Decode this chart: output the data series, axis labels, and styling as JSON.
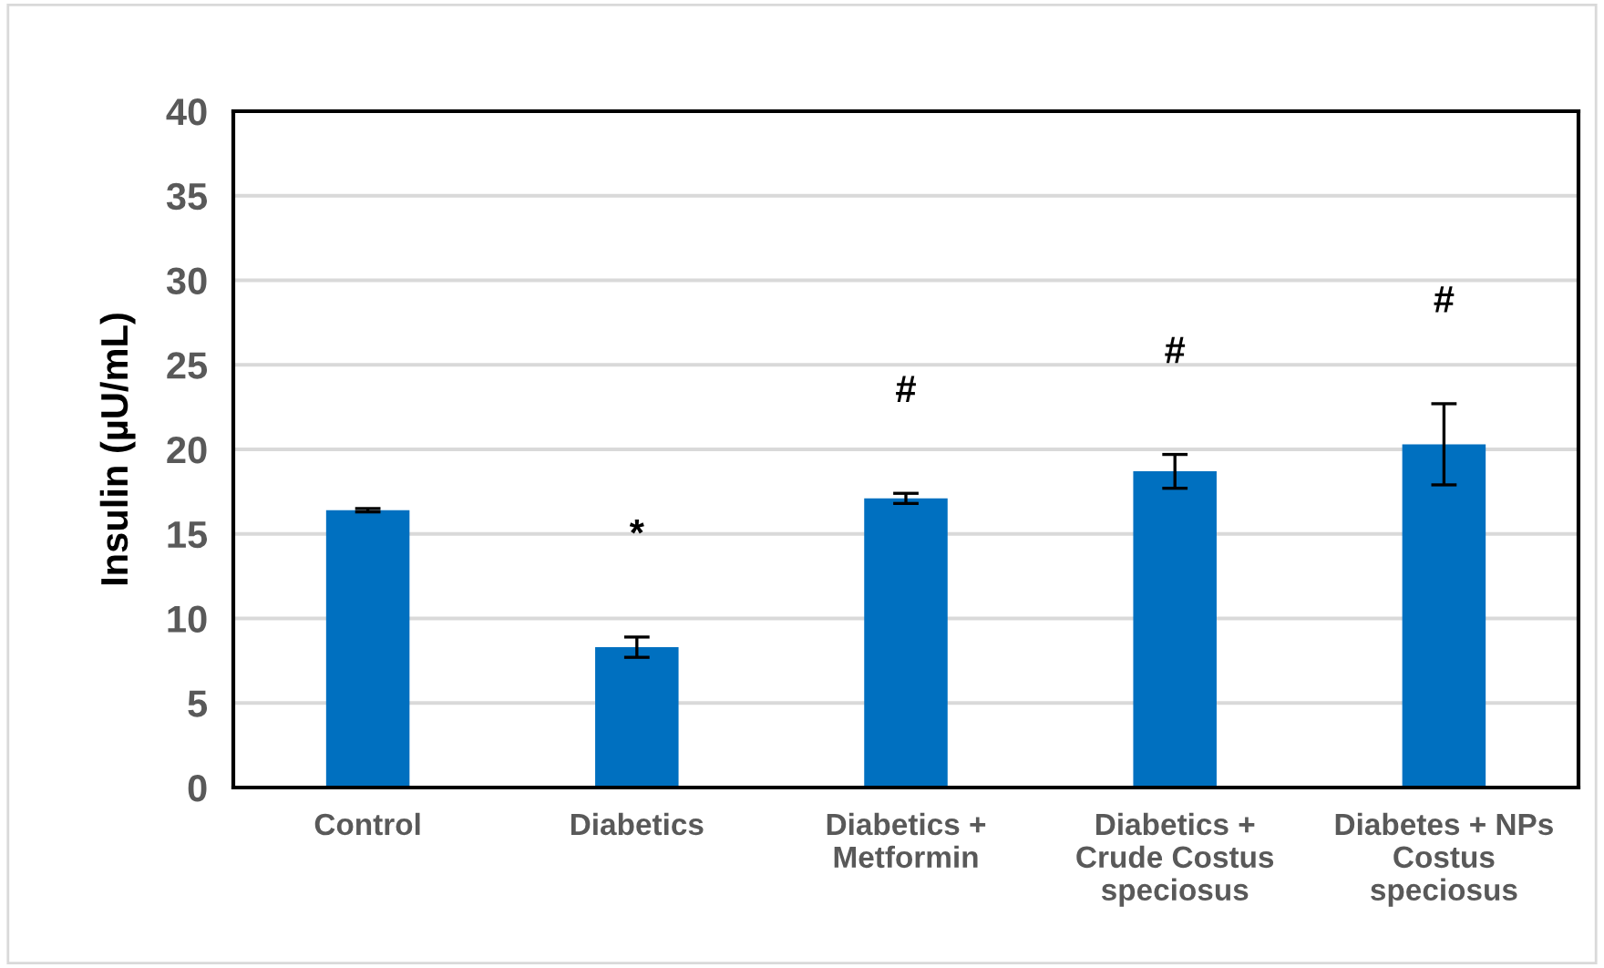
{
  "chart_data": {
    "type": "bar",
    "ylabel": "Insulin (µU/mL)",
    "categories": [
      "Control",
      "Diabetics",
      "Diabetics +\nMetformin",
      "Diabetics +\nCrude Costus\nspeciosus",
      "Diabetes + NPs\nCostus\nspeciosus"
    ],
    "values": [
      16.4,
      8.3,
      17.1,
      18.7,
      20.3
    ],
    "errors": [
      0.1,
      0.6,
      0.3,
      1.0,
      2.4
    ],
    "color": "#0070c0",
    "ylim": [
      0,
      40
    ],
    "yticks": [
      0,
      5,
      10,
      15,
      20,
      25,
      30,
      35,
      40
    ],
    "grid": "y",
    "annotations": [
      "*",
      "#",
      "#",
      "#"
    ]
  }
}
